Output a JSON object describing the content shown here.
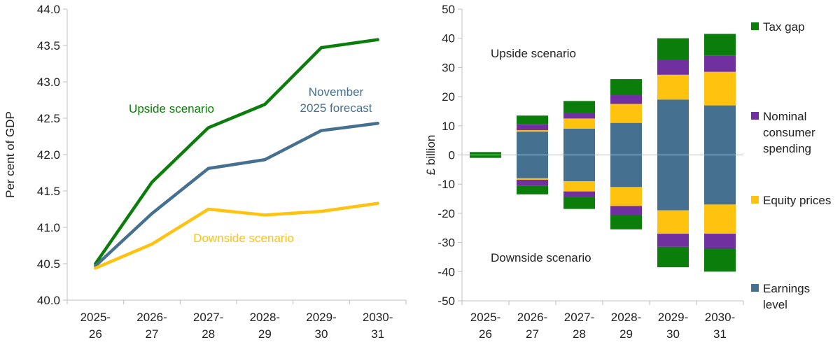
{
  "left_chart": {
    "chart_data": {
      "type": "line",
      "ylabel": "Per cent of GDP",
      "ylim": [
        40.0,
        44.0
      ],
      "yticks": [
        "40.0",
        "40.5",
        "41.0",
        "41.5",
        "42.0",
        "42.5",
        "43.0",
        "43.5",
        "44.0"
      ],
      "categories": [
        [
          "2025-",
          "26"
        ],
        [
          "2026-",
          "27"
        ],
        [
          "2027-",
          "28"
        ],
        [
          "2028-",
          "29"
        ],
        [
          "2029-",
          "30"
        ],
        [
          "2030-",
          "31"
        ]
      ],
      "series": [
        {
          "name": "Upside scenario",
          "color": "#0a7d0a",
          "values": [
            40.5,
            41.62,
            42.37,
            42.69,
            43.47,
            43.58
          ]
        },
        {
          "name": "November 2025 forecast",
          "color": "#45708f",
          "values": [
            40.47,
            41.19,
            41.81,
            41.93,
            42.33,
            42.43
          ]
        },
        {
          "name": "Downside scenario",
          "color": "#ffc20e",
          "values": [
            40.44,
            40.77,
            41.25,
            41.17,
            41.22,
            41.33
          ]
        }
      ],
      "annotations": [
        {
          "text": "Upside scenario",
          "series": 0
        },
        {
          "lines": [
            "November",
            "2025 forecast"
          ],
          "series": 1
        },
        {
          "text": "Downside scenario",
          "series": 2
        }
      ]
    }
  },
  "right_chart": {
    "chart_data": {
      "type": "bar",
      "stacked": true,
      "ylabel": "£ billion",
      "ylim": [
        -50,
        50
      ],
      "yticks": [
        "50",
        "40",
        "30",
        "20",
        "10",
        "0",
        "-10",
        "-20",
        "-30",
        "-40",
        "-50"
      ],
      "categories": [
        [
          "2025-",
          "26"
        ],
        [
          "2026-",
          "27"
        ],
        [
          "2027-",
          "28"
        ],
        [
          "2028-",
          "29"
        ],
        [
          "2029-",
          "30"
        ],
        [
          "2030-",
          "31"
        ]
      ],
      "series": [
        {
          "name": "Earnings level",
          "color": "#45708f",
          "upside": [
            0,
            8,
            9,
            11,
            19,
            17
          ],
          "downside": [
            0,
            -8,
            -9,
            -11,
            -19,
            -17
          ]
        },
        {
          "name": "Equity prices",
          "color": "#ffc20e",
          "upside": [
            0,
            0.5,
            3.5,
            6.5,
            8.5,
            11.5
          ],
          "downside": [
            0,
            -0.5,
            -3.5,
            -6.5,
            -8,
            -10
          ]
        },
        {
          "name": "Nominal consumer spending",
          "color": "#7030a0",
          "upside": [
            0,
            2,
            2,
            3,
            5,
            5.5
          ],
          "downside": [
            0,
            -2,
            -2,
            -3,
            -4.5,
            -5
          ]
        },
        {
          "name": "Tax gap",
          "color": "#0a7d0a",
          "upside": [
            1,
            3,
            4,
            5.5,
            7.5,
            7.5
          ],
          "downside": [
            -1,
            -3,
            -4,
            -5,
            -7,
            -8
          ]
        }
      ],
      "annotations": [
        "Upside scenario",
        "Downside scenario"
      ],
      "legend": {
        "position": "right",
        "items": [
          {
            "lines": [
              "Tax gap"
            ],
            "color": "#0a7d0a"
          },
          {
            "lines": [
              "Nominal",
              "consumer",
              "spending"
            ],
            "color": "#7030a0"
          },
          {
            "lines": [
              "Equity prices"
            ],
            "color": "#ffc20e"
          },
          {
            "lines": [
              "Earnings",
              "level"
            ],
            "color": "#45708f"
          }
        ]
      }
    }
  }
}
